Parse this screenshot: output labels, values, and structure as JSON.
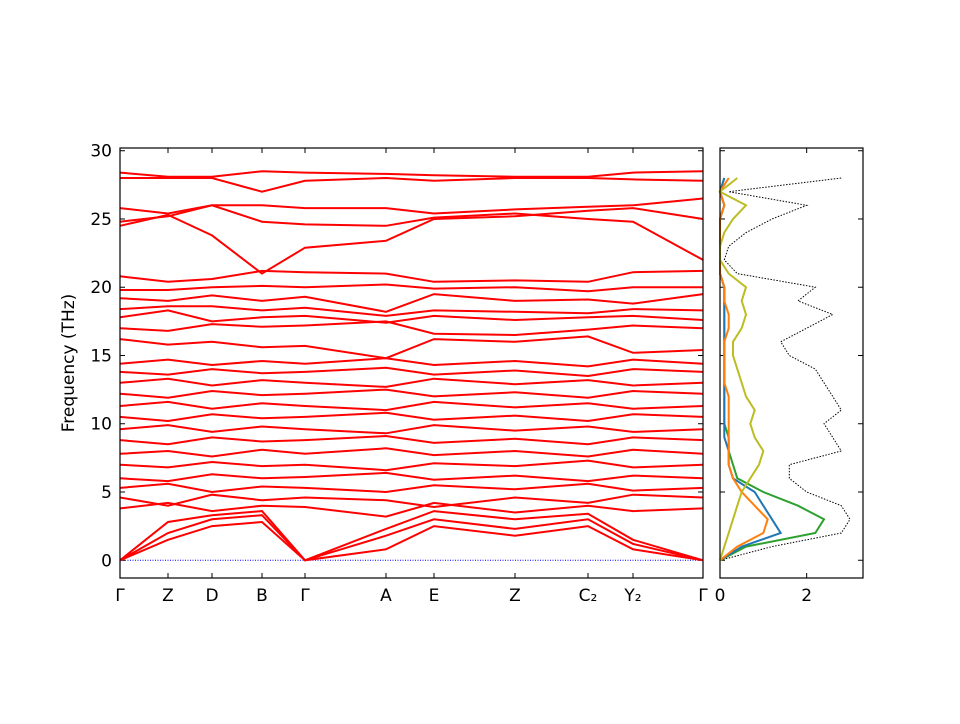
{
  "chart_data": [
    {
      "type": "bands",
      "ylabel": "Frequency (THz)",
      "color": "#ff0000",
      "ylim": [
        -1.3,
        30.2
      ],
      "yticks": [
        0,
        5,
        10,
        15,
        20,
        25,
        30
      ],
      "xlim": [
        0,
        5.83
      ],
      "xticks": [
        {
          "value": 0,
          "label": "Γ"
        },
        {
          "value": 0.48,
          "label": "Z"
        },
        {
          "value": 0.92,
          "label": "D"
        },
        {
          "value": 1.42,
          "label": "B"
        },
        {
          "value": 1.85,
          "label": "Γ"
        },
        {
          "value": 2.66,
          "label": "A"
        },
        {
          "value": 3.14,
          "label": "E"
        },
        {
          "value": 3.95,
          "label": "Z"
        },
        {
          "value": 4.68,
          "label": "C₂"
        },
        {
          "value": 5.13,
          "label": "Y₂"
        },
        {
          "value": 5.83,
          "label": "Γ"
        }
      ],
      "zero_line": 0,
      "zero_line_color": "#0000ff",
      "bands": [
        [
          0,
          1.5,
          2.5,
          2.8,
          0,
          0.8,
          2.5,
          1.8,
          2.5,
          0.8,
          0
        ],
        [
          0,
          2.0,
          3.0,
          3.3,
          0,
          1.8,
          3.0,
          2.3,
          3.0,
          1.2,
          0
        ],
        [
          0,
          2.8,
          3.3,
          3.6,
          0,
          2.3,
          3.6,
          3.0,
          3.4,
          1.5,
          0
        ],
        [
          3.8,
          4.2,
          3.6,
          4.0,
          3.9,
          3.2,
          4.2,
          3.5,
          4.0,
          3.6,
          3.8
        ],
        [
          4.6,
          4.0,
          4.8,
          4.4,
          4.6,
          4.4,
          3.9,
          4.6,
          4.2,
          4.8,
          4.6
        ],
        [
          5.3,
          5.6,
          5.0,
          5.4,
          5.3,
          5.0,
          5.5,
          5.2,
          5.6,
          5.1,
          5.3
        ],
        [
          6.0,
          5.8,
          6.3,
          6.0,
          6.1,
          6.4,
          5.9,
          6.2,
          5.8,
          6.2,
          6.0
        ],
        [
          7.0,
          6.8,
          7.2,
          6.9,
          7.0,
          6.6,
          7.1,
          6.9,
          7.3,
          6.8,
          7.0
        ],
        [
          7.8,
          8.0,
          7.6,
          8.1,
          7.8,
          8.2,
          7.7,
          8.0,
          7.6,
          8.1,
          7.8
        ],
        [
          8.8,
          8.5,
          9.0,
          8.7,
          8.8,
          9.1,
          8.6,
          8.9,
          8.5,
          9.0,
          8.8
        ],
        [
          9.6,
          9.9,
          9.4,
          9.8,
          9.6,
          9.3,
          9.9,
          9.5,
          9.8,
          9.4,
          9.6
        ],
        [
          10.5,
          10.2,
          10.7,
          10.4,
          10.5,
          10.8,
          10.3,
          10.6,
          10.2,
          10.7,
          10.5
        ],
        [
          11.3,
          11.6,
          11.1,
          11.5,
          11.3,
          11.0,
          11.6,
          11.2,
          11.5,
          11.1,
          11.3
        ],
        [
          12.2,
          11.9,
          12.4,
          12.1,
          12.2,
          12.5,
          12.0,
          12.3,
          11.9,
          12.4,
          12.2
        ],
        [
          13.0,
          13.3,
          12.8,
          13.2,
          13.0,
          12.7,
          13.3,
          12.9,
          13.2,
          12.8,
          13.0
        ],
        [
          13.8,
          13.6,
          14.0,
          13.7,
          13.8,
          14.1,
          13.6,
          13.9,
          13.5,
          14.0,
          13.8
        ],
        [
          14.4,
          14.7,
          14.3,
          14.6,
          14.4,
          14.8,
          14.3,
          14.6,
          14.2,
          14.7,
          14.4
        ],
        [
          16.2,
          15.8,
          16.0,
          15.6,
          15.7,
          14.8,
          16.2,
          16.0,
          16.4,
          15.2,
          15.4
        ],
        [
          17.0,
          16.8,
          17.3,
          17.1,
          17.2,
          17.5,
          16.6,
          16.5,
          16.9,
          17.2,
          17.0
        ],
        [
          17.8,
          18.3,
          17.5,
          17.8,
          17.9,
          17.4,
          17.9,
          17.6,
          17.8,
          17.9,
          17.6
        ],
        [
          18.4,
          18.6,
          18.6,
          18.3,
          18.5,
          17.9,
          18.3,
          18.2,
          18.1,
          18.4,
          18.3
        ],
        [
          19.2,
          19.0,
          19.4,
          19.0,
          19.3,
          18.2,
          19.5,
          19.0,
          19.1,
          18.8,
          19.5
        ],
        [
          19.8,
          19.8,
          20.0,
          20.1,
          20.0,
          20.2,
          19.9,
          20.0,
          19.7,
          20.0,
          20.0
        ],
        [
          20.8,
          20.4,
          20.6,
          21.2,
          21.1,
          21.0,
          20.4,
          20.5,
          20.4,
          21.1,
          21.2
        ],
        [
          24.5,
          25.3,
          23.8,
          21.0,
          22.9,
          23.4,
          25.0,
          25.2,
          25.6,
          25.8,
          25.0
        ],
        [
          24.8,
          25.2,
          26.0,
          24.8,
          24.6,
          24.5,
          25.1,
          25.4,
          25.0,
          24.8,
          22.0
        ],
        [
          25.8,
          25.4,
          26.0,
          26.0,
          25.8,
          25.8,
          25.4,
          25.7,
          25.9,
          26.0,
          26.5
        ],
        [
          28.0,
          28.0,
          28.0,
          27.0,
          27.8,
          28.0,
          27.8,
          28.0,
          28.0,
          27.9,
          27.8
        ],
        [
          28.4,
          28.1,
          28.1,
          28.5,
          28.4,
          28.3,
          28.2,
          28.1,
          28.1,
          28.4,
          28.5
        ]
      ]
    },
    {
      "type": "dos",
      "ylim": [
        -1.3,
        30.2
      ],
      "yticks": [
        0,
        5,
        10,
        15,
        20,
        25,
        30
      ],
      "xlim": [
        0,
        3.3
      ],
      "xticks": [
        0,
        2
      ],
      "freq": [
        0,
        1,
        2,
        3,
        4,
        5,
        6,
        7,
        8,
        9,
        10,
        11,
        12,
        13,
        14,
        15,
        16,
        17,
        18,
        19,
        20,
        21,
        22,
        23,
        24,
        25,
        26,
        27,
        28
      ],
      "total": {
        "color": "#000000",
        "values": [
          0,
          1.2,
          2.8,
          3.0,
          2.8,
          2.0,
          1.6,
          1.6,
          2.8,
          2.6,
          2.4,
          2.8,
          2.6,
          2.4,
          2.2,
          1.6,
          1.4,
          2.0,
          2.6,
          1.8,
          2.2,
          0.4,
          0.1,
          0.2,
          0.6,
          1.2,
          2.0,
          0.2,
          2.8
        ]
      },
      "series": [
        {
          "color": "#2ca02c",
          "values": [
            0,
            0.6,
            2.2,
            2.4,
            1.8,
            1.0,
            0.4,
            0.3,
            0.2,
            0.2,
            0.1,
            0.1,
            0.1,
            0.1,
            0.1,
            0.1,
            0.1,
            0.1,
            0.1,
            0.1,
            0.1,
            0,
            0,
            0,
            0,
            0,
            0.1,
            0,
            0.1
          ]
        },
        {
          "color": "#1f77b4",
          "values": [
            0,
            0.5,
            1.4,
            1.2,
            1.0,
            0.8,
            0.3,
            0.2,
            0.2,
            0.1,
            0.1,
            0.1,
            0.1,
            0.1,
            0.1,
            0.1,
            0.1,
            0.1,
            0.1,
            0.1,
            0.1,
            0,
            0,
            0,
            0,
            0,
            0.1,
            0,
            0.1
          ]
        },
        {
          "color": "#ff7f0e",
          "values": [
            0,
            0.4,
            1.0,
            1.1,
            0.8,
            0.5,
            0.3,
            0.2,
            0.2,
            0.2,
            0.2,
            0.2,
            0.2,
            0.1,
            0.1,
            0.1,
            0.1,
            0.2,
            0.2,
            0.1,
            0.1,
            0,
            0,
            0,
            0,
            0,
            0.1,
            0,
            0.2
          ]
        },
        {
          "color": "#bcbd22",
          "values": [
            0,
            0.1,
            0.2,
            0.3,
            0.4,
            0.5,
            0.7,
            0.9,
            1.0,
            0.8,
            0.7,
            0.8,
            0.6,
            0.5,
            0.4,
            0.3,
            0.3,
            0.5,
            0.6,
            0.5,
            0.6,
            0.2,
            0,
            0,
            0.1,
            0.3,
            0.6,
            0,
            0.4
          ]
        }
      ]
    }
  ]
}
